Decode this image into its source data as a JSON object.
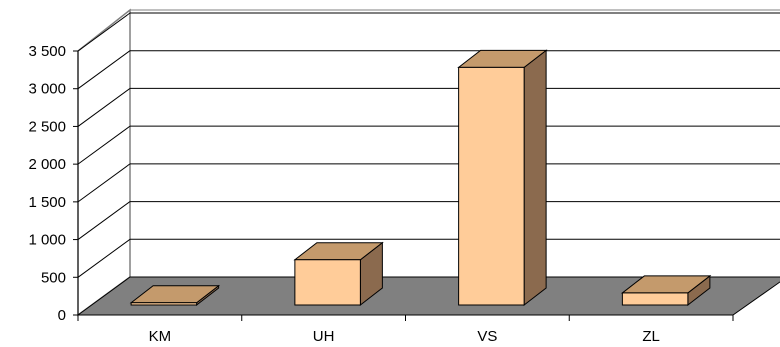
{
  "chart_data": {
    "type": "bar",
    "categories": [
      "KM",
      "UH",
      "VS",
      "ZL"
    ],
    "values": [
      30,
      600,
      3150,
      160
    ],
    "ylim": [
      0,
      3500
    ],
    "yticks": [
      0,
      500,
      1000,
      1500,
      2000,
      2500,
      3000,
      3500
    ],
    "ytick_labels": [
      "0",
      "500",
      "1 000",
      "1 500",
      "2 000",
      "2 500",
      "3 000",
      "3 500"
    ],
    "title": "",
    "xlabel": "",
    "ylabel": "",
    "grid": true,
    "legend": "none",
    "colors": {
      "bar_front": "#FFCC99",
      "bar_top": "#C49A6C",
      "bar_side": "#8B6A4E",
      "floor": "#808080",
      "grid": "#000000",
      "walls": "#FFFFFF"
    }
  }
}
